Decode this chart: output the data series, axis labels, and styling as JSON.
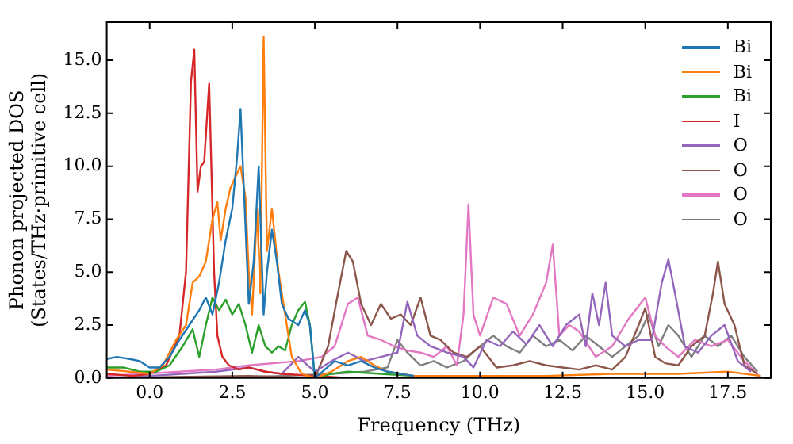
{
  "chart_data": {
    "type": "line",
    "xlabel": "Frequency (THz)",
    "ylabel": "Phonon projected DOS\n(States/THz·primitive cell)",
    "xlim": [
      -1.3,
      18.8
    ],
    "ylim": [
      0,
      16.8
    ],
    "xticks": [
      {
        "value": 0,
        "label": "0.0"
      },
      {
        "value": 2.5,
        "label": "2.5"
      },
      {
        "value": 5,
        "label": "5.0"
      },
      {
        "value": 7.5,
        "label": "7.5"
      },
      {
        "value": 10,
        "label": "10.0"
      },
      {
        "value": 12.5,
        "label": "12.5"
      },
      {
        "value": 15,
        "label": "15.0"
      },
      {
        "value": 17.5,
        "label": "17.5"
      }
    ],
    "yticks": [
      {
        "value": 0,
        "label": "0.0"
      },
      {
        "value": 2.5,
        "label": "2.5"
      },
      {
        "value": 5,
        "label": "5.0"
      },
      {
        "value": 7.5,
        "label": "7.5"
      },
      {
        "value": 10,
        "label": "10.0"
      },
      {
        "value": 12.5,
        "label": "12.5"
      },
      {
        "value": 15,
        "label": "15.0"
      }
    ],
    "grid": false,
    "legend": "top right",
    "marker": "none",
    "line_style": "solid",
    "series": [
      {
        "name": "Bi",
        "color": "#1f77b4",
        "x": [
          -1.3,
          -1,
          -0.6,
          -0.3,
          0,
          0.3,
          0.6,
          0.9,
          1.2,
          1.5,
          1.7,
          1.9,
          2.1,
          2.3,
          2.5,
          2.65,
          2.75,
          2.85,
          3.0,
          3.15,
          3.3,
          3.45,
          3.55,
          3.7,
          3.85,
          4.0,
          4.2,
          4.5,
          4.7,
          4.85,
          5.0,
          5.3,
          5.6,
          6.0,
          6.4,
          6.8,
          7.2,
          7.6,
          8.0
        ],
        "values": [
          0.9,
          1.0,
          0.9,
          0.8,
          0.5,
          0.5,
          1.0,
          1.8,
          2.5,
          3.2,
          3.8,
          3.0,
          4.5,
          6.5,
          8.0,
          10.5,
          12.7,
          9.0,
          3.5,
          5.5,
          10.0,
          3.0,
          5.0,
          7.0,
          5.5,
          3.5,
          2.8,
          2.5,
          3.2,
          2.5,
          0.0,
          0.4,
          0.8,
          0.6,
          0.8,
          0.5,
          0.3,
          0.2,
          0.1
        ]
      },
      {
        "name": "Bi",
        "color": "#ff7f0e",
        "x": [
          -1.3,
          -0.6,
          0,
          0.4,
          0.8,
          1.1,
          1.3,
          1.5,
          1.7,
          1.9,
          2.05,
          2.15,
          2.3,
          2.45,
          2.6,
          2.75,
          2.9,
          3.0,
          3.1,
          3.25,
          3.35,
          3.45,
          3.55,
          3.7,
          3.9,
          4.1,
          4.3,
          4.6,
          5.0,
          5.5,
          6.0,
          6.4,
          6.8,
          7.2,
          8.0,
          10,
          12,
          14,
          16,
          17.5,
          18.5
        ],
        "values": [
          0.4,
          0.3,
          0.2,
          0.6,
          1.8,
          2.5,
          4.5,
          4.8,
          5.5,
          7.5,
          8.3,
          6.5,
          8.0,
          9.0,
          9.5,
          10.0,
          8.5,
          5.0,
          3.0,
          8.0,
          4.0,
          16.1,
          6.0,
          8.0,
          5.0,
          3.0,
          1.0,
          0.2,
          0.0,
          0.3,
          0.8,
          1.0,
          0.6,
          0.3,
          0.1,
          0.1,
          0.1,
          0.2,
          0.2,
          0.3,
          0.1
        ]
      },
      {
        "name": "Bi",
        "color": "#2ca02c",
        "x": [
          -1.3,
          -0.8,
          -0.3,
          0.2,
          0.6,
          1.0,
          1.3,
          1.5,
          1.7,
          1.9,
          2.1,
          2.3,
          2.5,
          2.7,
          2.9,
          3.1,
          3.3,
          3.5,
          3.7,
          3.9,
          4.1,
          4.3,
          4.5,
          4.7,
          4.85,
          5.0,
          5.5,
          6.0,
          7.0,
          8.0
        ],
        "values": [
          0.5,
          0.5,
          0.3,
          0.3,
          0.6,
          1.5,
          2.3,
          1.0,
          2.5,
          3.8,
          3.2,
          3.7,
          3.0,
          3.5,
          2.5,
          1.2,
          2.5,
          1.5,
          1.2,
          1.5,
          1.3,
          2.5,
          3.2,
          3.6,
          2.5,
          0.0,
          0.2,
          0.3,
          0.2,
          0.1
        ]
      },
      {
        "name": "I",
        "color": "#d62728",
        "x": [
          -1.3,
          -0.5,
          0,
          0.5,
          0.9,
          1.1,
          1.25,
          1.35,
          1.45,
          1.55,
          1.65,
          1.8,
          1.9,
          1.95,
          2.05,
          2.2,
          2.4,
          2.7,
          3.0,
          3.5,
          4.0,
          5.0,
          6.0
        ],
        "values": [
          0.2,
          0.1,
          0.2,
          0.6,
          2.0,
          5.0,
          14.0,
          15.5,
          8.8,
          10.0,
          10.2,
          13.9,
          8.0,
          5.0,
          2.0,
          1.0,
          0.6,
          0.4,
          0.5,
          0.3,
          0.2,
          0.1,
          0.0
        ]
      },
      {
        "name": "O",
        "color": "#9467bd",
        "x": [
          -1.3,
          0,
          1,
          2,
          3,
          3.5,
          4.0,
          4.5,
          5.0,
          5.5,
          6.0,
          6.5,
          7.0,
          7.5,
          7.8,
          8.1,
          8.5,
          9.0,
          9.5,
          9.8,
          10.2,
          10.6,
          11.0,
          11.4,
          11.8,
          12.2,
          12.6,
          13.0,
          13.2,
          13.4,
          13.6,
          13.8,
          14.0,
          14.4,
          14.8,
          15.2,
          15.5,
          15.7,
          15.9,
          16.2,
          16.6,
          17.0,
          17.4,
          17.8,
          18.2
        ],
        "values": [
          0.0,
          0.1,
          0.2,
          0.3,
          0.5,
          0.3,
          0.2,
          1.0,
          0.3,
          0.8,
          1.2,
          0.8,
          1.0,
          1.2,
          3.6,
          2.0,
          1.5,
          1.2,
          1.0,
          0.5,
          1.8,
          1.5,
          2.2,
          1.6,
          2.5,
          1.5,
          2.5,
          3.0,
          1.5,
          4.0,
          2.5,
          4.5,
          2.0,
          1.5,
          1.8,
          1.8,
          4.5,
          5.6,
          4.0,
          1.5,
          1.2,
          2.0,
          2.5,
          0.8,
          0.3
        ]
      },
      {
        "name": "O",
        "color": "#8c564b",
        "x": [
          -1.3,
          3,
          5.0,
          5.4,
          5.7,
          5.95,
          6.15,
          6.4,
          6.7,
          7.0,
          7.3,
          7.6,
          7.9,
          8.2,
          8.5,
          8.8,
          9.2,
          9.6,
          10.0,
          10.5,
          11.0,
          11.5,
          12.0,
          12.5,
          13.0,
          13.5,
          14.0,
          14.4,
          14.8,
          15.0,
          15.3,
          15.6,
          16.0,
          16.4,
          16.8,
          17.05,
          17.2,
          17.4,
          17.7,
          18.0,
          18.4
        ],
        "values": [
          0.0,
          0.1,
          0.0,
          1.5,
          4.0,
          6.0,
          5.5,
          3.5,
          2.5,
          3.5,
          2.8,
          3.0,
          2.5,
          3.8,
          2.0,
          1.8,
          1.2,
          1.0,
          1.5,
          0.5,
          0.6,
          0.8,
          0.6,
          0.5,
          0.4,
          0.6,
          0.4,
          1.0,
          2.5,
          3.3,
          1.0,
          0.7,
          0.6,
          1.5,
          2.0,
          4.0,
          5.5,
          3.5,
          2.5,
          0.6,
          0.2
        ]
      },
      {
        "name": "O",
        "color": "#e377c2",
        "x": [
          -1.3,
          2,
          3,
          4.5,
          5.2,
          5.6,
          6.0,
          6.3,
          6.6,
          7.0,
          7.4,
          7.8,
          8.2,
          8.6,
          9.0,
          9.3,
          9.5,
          9.65,
          9.8,
          10.0,
          10.4,
          10.8,
          11.2,
          11.6,
          12.0,
          12.2,
          12.4,
          12.7,
          13.0,
          13.5,
          14.0,
          14.5,
          15.0,
          15.3,
          15.6,
          16.0,
          16.5,
          17.0,
          17.5,
          18.0,
          18.5
        ],
        "values": [
          0.1,
          0.4,
          0.6,
          0.8,
          1.0,
          1.5,
          3.5,
          3.8,
          2.0,
          1.8,
          1.5,
          1.3,
          1.2,
          1.0,
          1.5,
          0.6,
          3.0,
          8.2,
          3.0,
          2.0,
          3.8,
          3.5,
          2.0,
          3.0,
          4.5,
          6.3,
          2.0,
          2.5,
          2.2,
          1.0,
          1.5,
          2.8,
          3.8,
          2.0,
          1.5,
          1.0,
          1.8,
          1.5,
          1.8,
          0.8,
          0.0
        ]
      },
      {
        "name": "O",
        "color": "#7f7f7f",
        "x": [
          -1.3,
          2,
          4,
          5.5,
          6.5,
          7.2,
          7.5,
          7.8,
          8.2,
          8.6,
          9.0,
          9.5,
          10.0,
          10.4,
          10.8,
          11.2,
          11.6,
          12.0,
          12.4,
          12.8,
          13.2,
          13.6,
          14.0,
          14.4,
          14.8,
          15.1,
          15.4,
          15.7,
          16.0,
          16.4,
          16.8,
          17.2,
          17.6,
          18.0,
          18.4
        ],
        "values": [
          0.0,
          0.0,
          0.1,
          0.2,
          0.3,
          0.5,
          1.8,
          1.2,
          0.6,
          0.8,
          0.5,
          0.8,
          1.5,
          2.0,
          1.5,
          1.2,
          2.0,
          1.5,
          1.8,
          1.3,
          2.0,
          1.5,
          1.0,
          1.5,
          2.0,
          3.0,
          1.5,
          2.5,
          2.0,
          1.0,
          2.0,
          1.5,
          2.0,
          1.0,
          0.3
        ]
      }
    ]
  }
}
